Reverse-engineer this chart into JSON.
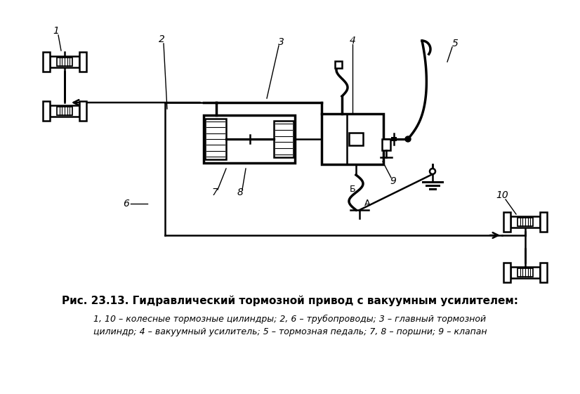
{
  "title": "Рис. 23.13. Гидравлический тормозной привод с вакуумным усилителем:",
  "caption_line1": "1, 10 – колесные тормозные цилиндры; 2, 6 – трубопроводы; 3 – главный тормозной",
  "caption_line2": "цилиндр; 4 – вакуумный усилитель; 5 – тормозная педаль; 7, 8 – поршни; 9 – клапан",
  "bg_color": "#ffffff",
  "line_color": "#000000",
  "lw": 1.8,
  "lw_thick": 2.5,
  "lw_thin": 1.0
}
